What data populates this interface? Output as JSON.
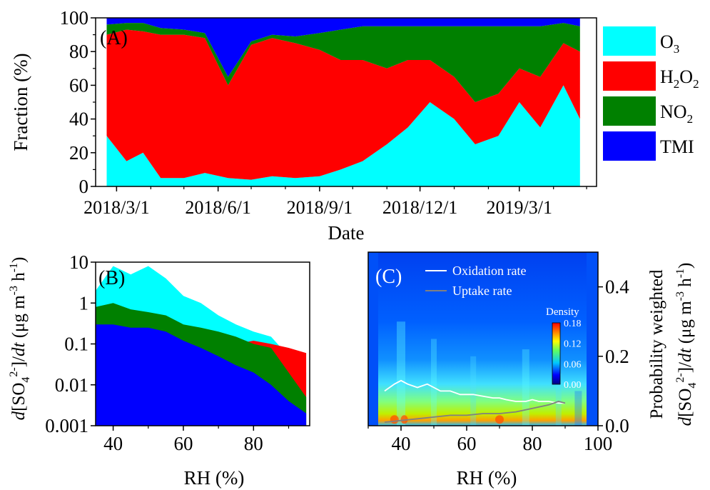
{
  "chart_data": [
    {
      "panel": "(A)",
      "type": "area",
      "ylabel": "Fraction (%)",
      "xlabel": "Date",
      "ylim": [
        0,
        100
      ],
      "yticks": [
        0,
        20,
        40,
        60,
        80,
        100
      ],
      "xticks": [
        "2018/3/1",
        "2018/6/1",
        "2018/9/1",
        "2018/12/1",
        "2019/3/1"
      ],
      "x_range": [
        "2018-02-10",
        "2019-05-10"
      ],
      "stack_order": [
        "O3",
        "H2O2",
        "NO2",
        "TMI"
      ],
      "legend": [
        {
          "key": "O3",
          "base": "O",
          "sub": "3",
          "color": "#00ffff"
        },
        {
          "key": "H2O2",
          "base": "H",
          "sub": "2",
          "base2": "O",
          "sub2": "2",
          "color": "#ff0000"
        },
        {
          "key": "NO2",
          "base": "NO",
          "sub": "2",
          "color": "#008000"
        },
        {
          "key": "TMI",
          "base": "TMI",
          "sub": "",
          "color": "#0000ff"
        }
      ],
      "series": [
        {
          "name": "O3",
          "x": [
            "2018-02-20",
            "2018-03-10",
            "2018-03-25",
            "2018-04-10",
            "2018-05-01",
            "2018-05-20",
            "2018-06-10",
            "2018-07-01",
            "2018-07-20",
            "2018-08-10",
            "2018-09-01",
            "2018-09-20",
            "2018-10-10",
            "2018-11-01",
            "2018-11-20",
            "2018-12-10",
            "2019-01-01",
            "2019-01-20",
            "2019-02-10",
            "2019-03-01",
            "2019-03-20",
            "2019-04-10",
            "2019-04-25"
          ],
          "values": [
            30,
            15,
            20,
            5,
            5,
            8,
            5,
            4,
            6,
            5,
            6,
            10,
            15,
            25,
            35,
            50,
            40,
            25,
            30,
            50,
            35,
            60,
            40
          ]
        },
        {
          "name": "H2O2",
          "x": [
            "2018-02-20",
            "2018-03-10",
            "2018-03-25",
            "2018-04-10",
            "2018-05-01",
            "2018-05-20",
            "2018-06-10",
            "2018-07-01",
            "2018-07-20",
            "2018-08-10",
            "2018-09-01",
            "2018-09-20",
            "2018-10-10",
            "2018-11-01",
            "2018-11-20",
            "2018-12-10",
            "2019-01-01",
            "2019-01-20",
            "2019-02-10",
            "2019-03-01",
            "2019-03-20",
            "2019-04-10",
            "2019-04-25"
          ],
          "values": [
            60,
            78,
            72,
            85,
            85,
            80,
            55,
            80,
            82,
            80,
            75,
            65,
            60,
            45,
            40,
            25,
            25,
            25,
            25,
            20,
            30,
            25,
            40
          ]
        },
        {
          "name": "NO2",
          "x": [
            "2018-02-20",
            "2018-03-10",
            "2018-03-25",
            "2018-04-10",
            "2018-05-01",
            "2018-05-20",
            "2018-06-10",
            "2018-07-01",
            "2018-07-20",
            "2018-08-10",
            "2018-09-01",
            "2018-09-20",
            "2018-10-10",
            "2018-11-01",
            "2018-11-20",
            "2018-12-10",
            "2019-01-01",
            "2019-01-20",
            "2019-02-10",
            "2019-03-01",
            "2019-03-20",
            "2019-04-10",
            "2019-04-25"
          ],
          "values": [
            6,
            4,
            5,
            4,
            3,
            3,
            5,
            2,
            2,
            4,
            10,
            18,
            20,
            25,
            20,
            20,
            30,
            45,
            40,
            25,
            30,
            12,
            15
          ]
        },
        {
          "name": "TMI",
          "x": [
            "2018-02-20",
            "2018-03-10",
            "2018-03-25",
            "2018-04-10",
            "2018-05-01",
            "2018-05-20",
            "2018-06-10",
            "2018-07-01",
            "2018-07-20",
            "2018-08-10",
            "2018-09-01",
            "2018-09-20",
            "2018-10-10",
            "2018-11-01",
            "2018-11-20",
            "2018-12-10",
            "2019-01-01",
            "2019-01-20",
            "2019-02-10",
            "2019-03-01",
            "2019-03-20",
            "2019-04-10",
            "2019-04-25"
          ],
          "values": [
            4,
            3,
            3,
            6,
            7,
            9,
            35,
            14,
            10,
            11,
            9,
            7,
            5,
            5,
            5,
            5,
            5,
            5,
            5,
            5,
            5,
            3,
            5
          ]
        }
      ]
    },
    {
      "panel": "(B)",
      "type": "bar",
      "xlabel": "RH (%)",
      "ylabel_parts": {
        "d": "d",
        "open": "[SO",
        "sub": "4",
        "sup": "2-",
        "mid": "]/",
        "dt": "dt",
        "unit_open": " (μg m",
        "unit_sup1": "-3",
        "unit_mid": " h",
        "unit_sup2": "-1",
        "unit_close": ")"
      },
      "yscale": "log",
      "ylim": [
        0.001,
        10
      ],
      "yticks": [
        0.001,
        0.01,
        0.1,
        1,
        10
      ],
      "ytick_labels": [
        "0.001",
        "0.01",
        "0.1",
        "1",
        "10"
      ],
      "xlim": [
        35,
        96
      ],
      "xticks": [
        40,
        60,
        80
      ],
      "series": [
        {
          "name": "TMI",
          "color": "#0000ff",
          "x": [
            35,
            40,
            45,
            50,
            55,
            60,
            65,
            70,
            75,
            80,
            85,
            90,
            95
          ],
          "values": [
            0.3,
            0.3,
            0.25,
            0.25,
            0.2,
            0.12,
            0.08,
            0.05,
            0.03,
            0.02,
            0.01,
            0.004,
            0.002
          ]
        },
        {
          "name": "NO2",
          "color": "#008000",
          "x": [
            35,
            40,
            45,
            50,
            55,
            60,
            65,
            70,
            75,
            80,
            85,
            90,
            95
          ],
          "values": [
            0.8,
            1.0,
            0.7,
            0.6,
            0.5,
            0.3,
            0.25,
            0.2,
            0.15,
            0.1,
            0.08,
            0.02,
            0.005
          ]
        },
        {
          "name": "H2O2",
          "color": "#ff0000",
          "x": [
            35,
            40,
            45,
            50,
            55,
            60,
            65,
            70,
            75,
            80,
            85,
            90,
            95
          ],
          "values": [
            0.4,
            0.5,
            0.4,
            0.4,
            0.3,
            0.2,
            0.15,
            0.1,
            0.1,
            0.12,
            0.1,
            0.08,
            0.06
          ]
        },
        {
          "name": "O3",
          "color": "#00ffff",
          "x": [
            35,
            40,
            45,
            50,
            55,
            60,
            65,
            70,
            75,
            80,
            85,
            90,
            95
          ],
          "values": [
            2,
            8,
            5,
            8,
            4,
            1.5,
            1,
            0.5,
            0.3,
            0.2,
            0.15,
            0.05,
            0.02
          ]
        }
      ]
    },
    {
      "panel": "(C)",
      "type": "heatmap",
      "xlabel": "RH (%)",
      "ylabel_title": "Probability weighted",
      "ylabel_parts": {
        "d": "d",
        "open": "[SO",
        "sub": "4",
        "sup": "2-",
        "mid": "]/",
        "dt": "dt",
        "unit_open": " (μg m",
        "unit_sup1": "-3",
        "unit_mid": " h",
        "unit_sup2": "-1",
        "unit_close": ")"
      },
      "xlim": [
        30,
        100
      ],
      "xticks": [
        40,
        60,
        80,
        100
      ],
      "ylim": [
        0,
        0.5
      ],
      "yticks": [
        0.0,
        0.2,
        0.4
      ],
      "ytick_labels": [
        "0.0",
        "0.2",
        "0.4"
      ],
      "colorbar": {
        "title": "Density",
        "min": 0.0,
        "max": 0.18,
        "ticks": [
          "0.18",
          "0.12",
          "0.06",
          "0.00"
        ]
      },
      "lines": [
        {
          "name": "Oxidation rate",
          "color": "#ffffff",
          "x": [
            35,
            38,
            40,
            42,
            45,
            48,
            50,
            52,
            55,
            58,
            60,
            62,
            65,
            68,
            70,
            72,
            75,
            78,
            80,
            82,
            85,
            88,
            90
          ],
          "values": [
            0.1,
            0.12,
            0.13,
            0.12,
            0.11,
            0.12,
            0.11,
            0.1,
            0.1,
            0.09,
            0.09,
            0.09,
            0.085,
            0.08,
            0.08,
            0.075,
            0.07,
            0.07,
            0.075,
            0.07,
            0.07,
            0.065,
            0.065
          ]
        },
        {
          "name": "Uptake rate",
          "color": "#808080",
          "x": [
            35,
            40,
            45,
            50,
            55,
            60,
            65,
            70,
            75,
            80,
            85,
            88,
            90
          ],
          "values": [
            0.01,
            0.015,
            0.02,
            0.025,
            0.03,
            0.03,
            0.035,
            0.035,
            0.04,
            0.05,
            0.06,
            0.07,
            0.065
          ]
        }
      ]
    }
  ]
}
